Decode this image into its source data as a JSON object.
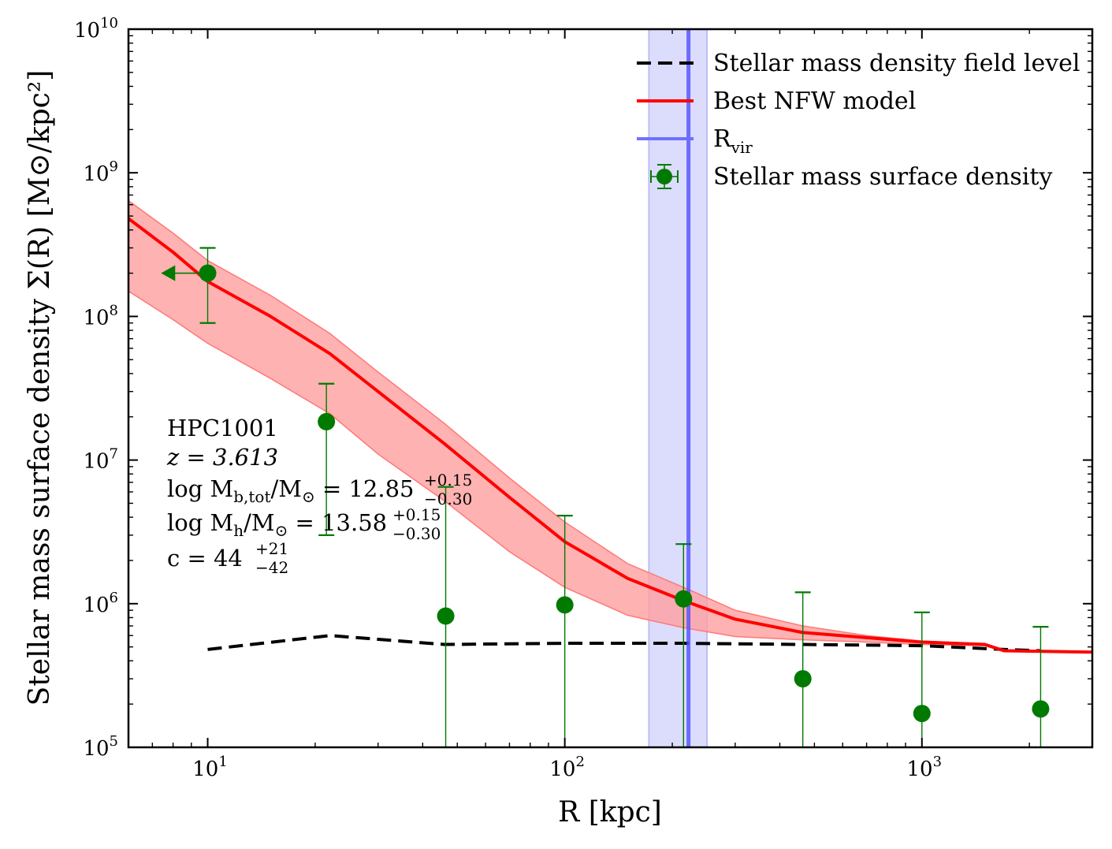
{
  "chart_data": {
    "type": "scatter",
    "xscale": "log",
    "yscale": "log",
    "xlim": [
      6,
      3000
    ],
    "ylim": [
      100000,
      10000000000
    ],
    "xlabel": "R [kpc]",
    "ylabel": "Stellar mass surface density Σ(R) [M⊙/kpc²]",
    "x_ticks": [
      {
        "value": 10,
        "base": "10",
        "exp": "1"
      },
      {
        "value": 100,
        "base": "10",
        "exp": "2"
      },
      {
        "value": 1000,
        "base": "10",
        "exp": "3"
      }
    ],
    "y_ticks": [
      {
        "value": 100000,
        "base": "10",
        "exp": "5"
      },
      {
        "value": 1000000,
        "base": "10",
        "exp": "6"
      },
      {
        "value": 10000000,
        "base": "10",
        "exp": "7"
      },
      {
        "value": 100000000,
        "base": "10",
        "exp": "8"
      },
      {
        "value": 1000000000,
        "base": "10",
        "exp": "9"
      },
      {
        "value": 10000000000,
        "base": "10",
        "exp": "10"
      }
    ],
    "series": [
      {
        "name": "Stellar mass density field level",
        "style": "dashed",
        "color": "#000000",
        "x": [
          10,
          22,
          46,
          100,
          215,
          464,
          1000,
          1700,
          2150
        ],
        "y": [
          480000,
          600000,
          520000,
          530000,
          530000,
          520000,
          510000,
          480000,
          470000
        ]
      },
      {
        "name": "Best NFW model",
        "style": "solid",
        "color": "#ff0000",
        "x": [
          6,
          8,
          10,
          15,
          22,
          30,
          46,
          70,
          100,
          150,
          215,
          300,
          464,
          700,
          1000,
          1500,
          1700,
          3000
        ],
        "y": [
          480000000,
          280000000,
          175000000,
          100000000,
          55000000,
          30000000,
          13000000,
          5500000,
          2700000,
          1500000,
          1050000,
          780000,
          630000,
          580000,
          540000,
          520000,
          470000,
          460000
        ],
        "band_upper": [
          640000000,
          380000000,
          245000000,
          140000000,
          76000000,
          41000000,
          18000000,
          7500000,
          3700000,
          1900000,
          1300000,
          900000,
          700000,
          600000,
          550000,
          525000,
          472000,
          462000
        ],
        "band_lower": [
          150000000,
          95000000,
          65000000,
          37000000,
          21000000,
          11000000,
          5200000,
          2300000,
          1300000,
          830000,
          680000,
          590000,
          560000,
          540000,
          520000,
          510000,
          467000,
          458000
        ],
        "band_color": "#ff9f9f"
      },
      {
        "name": "Stellar mass surface density",
        "style": "errorbar",
        "color": "#007a00",
        "points": [
          {
            "x": 10,
            "y": 200000000,
            "yerr_low": 90000000,
            "yerr_high": 300000000,
            "xuplim": 7.4
          },
          {
            "x": 21.5,
            "y": 18500000,
            "yerr_low": 3000000,
            "yerr_high": 34000000
          },
          {
            "x": 46.4,
            "y": 820000,
            "yerr_low": 100000,
            "yerr_high": 6500000
          },
          {
            "x": 100,
            "y": 980000,
            "yerr_low": 100000,
            "yerr_high": 4100000
          },
          {
            "x": 215,
            "y": 1080000,
            "yerr_low": 100000,
            "yerr_high": 2600000
          },
          {
            "x": 464,
            "y": 300000,
            "yerr_low": 100000,
            "yerr_high": 1200000
          },
          {
            "x": 1000,
            "y": 172000,
            "yerr_low": 100000,
            "yerr_high": 870000
          },
          {
            "x": 2150,
            "y": 185000,
            "yerr_low": 100000,
            "yerr_high": 690000
          }
        ]
      }
    ],
    "rvir": {
      "name": "R_vir",
      "value": 222,
      "band": [
        172,
        250
      ],
      "color": "#5050ff",
      "band_color": "#dcdcfc"
    },
    "legend": {
      "placement": "top-right",
      "entries": [
        {
          "label": "Stellar mass density field level",
          "kind": "dashed",
          "color": "#000000"
        },
        {
          "label": "Best NFW model",
          "kind": "solid",
          "color": "#ff0000"
        },
        {
          "label": "R",
          "subscript": "vir",
          "kind": "solid",
          "color": "#7070ff"
        },
        {
          "label": "Stellar mass surface density",
          "kind": "errorbar",
          "color": "#007a00"
        }
      ]
    },
    "annotation": {
      "name": "HPC1001",
      "z": "z = 3.613",
      "mb": {
        "prefix": "log M",
        "sub": "b,tot",
        "mid": "/M",
        "sun": "⊙",
        "value": " = 12.85",
        "sup": "+0.15",
        "inf": "−0.30"
      },
      "mh": {
        "prefix": "log M",
        "sub": "h",
        "mid": "/M",
        "sun": "⊙",
        "value": " = 13.58",
        "sup": "+0.15",
        "inf": "−0.30"
      },
      "c": {
        "prefix": "c = 44",
        "sup": "+21",
        "inf": "−42"
      }
    }
  }
}
